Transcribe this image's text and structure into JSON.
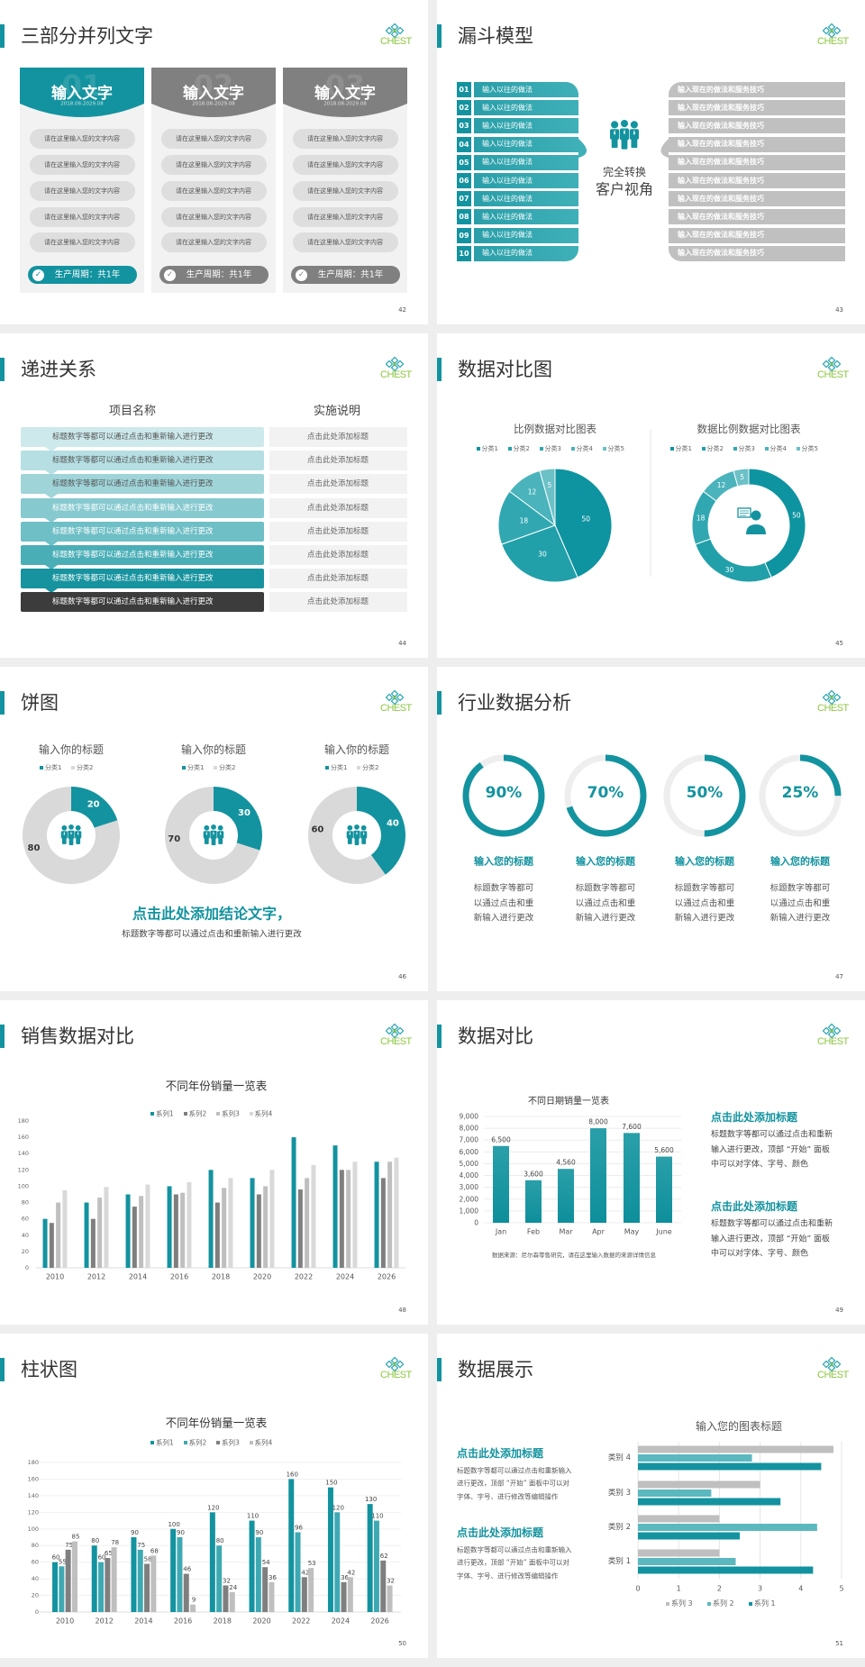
{
  "logo_text": "CHEST",
  "colors": {
    "accent": "#13939f",
    "teal_light": "#5bb8bf",
    "gray": "#808080",
    "gray_light": "#bfbfbf",
    "logo_green": "#8cc63f",
    "progress_rows": [
      "#cde9ec",
      "#b5dfe3",
      "#9fd4d9",
      "#86c9cf",
      "#6fbfc6",
      "#4aaeb7",
      "#16939e",
      "#3c3c3c"
    ],
    "pie_slices": [
      "#0e94a0",
      "#21a0aa",
      "#31a8b1",
      "#4ab3bb",
      "#6cc1c7"
    ]
  },
  "slides": [
    {
      "page": "42",
      "title": "三部分并列文字",
      "cards": [
        {
          "number": "01",
          "heading": "输入文字",
          "date": "2018.08-2029.08",
          "theme": "teal",
          "items": [
            "请在这里输入您的文字内容",
            "请在这里输入您的文字内容",
            "请在这里输入您的文字内容",
            "请在这里输入您的文字内容",
            "请在这里输入您的文字内容"
          ],
          "footer": "生产周期：共1年"
        },
        {
          "number": "02",
          "heading": "输入文字",
          "date": "2018.08-2029.08",
          "theme": "gray",
          "items": [
            "请在这里输入您的文字内容",
            "请在这里输入您的文字内容",
            "请在这里输入您的文字内容",
            "请在这里输入您的文字内容",
            "请在这里输入您的文字内容"
          ],
          "footer": "生产周期：共1年"
        },
        {
          "number": "03",
          "heading": "输入文字",
          "date": "2018.08-2029.08",
          "theme": "gray",
          "items": [
            "请在这里输入您的文字内容",
            "请在这里输入您的文字内容",
            "请在这里输入您的文字内容",
            "请在这里输入您的文字内容",
            "请在这里输入您的文字内容"
          ],
          "footer": "生产周期：共1年"
        }
      ]
    },
    {
      "page": "43",
      "title": "漏斗模型",
      "left_items": [
        {
          "num": "01",
          "text": "输入以往的做法"
        },
        {
          "num": "02",
          "text": "输入以往的做法"
        },
        {
          "num": "03",
          "text": "输入以往的做法"
        },
        {
          "num": "04",
          "text": "输入以往的做法"
        },
        {
          "num": "05",
          "text": "输入以往的做法"
        },
        {
          "num": "06",
          "text": "输入以往的做法"
        },
        {
          "num": "07",
          "text": "输入以往的做法"
        },
        {
          "num": "08",
          "text": "输入以往的做法"
        },
        {
          "num": "09",
          "text": "输入以往的做法"
        },
        {
          "num": "10",
          "text": "输入以往的做法"
        }
      ],
      "right_items": [
        "输入现在的做法和服务技巧",
        "输入现在的做法和服务技巧",
        "输入现在的做法和服务技巧",
        "输入现在的做法和服务技巧",
        "输入现在的做法和服务技巧",
        "输入现在的做法和服务技巧",
        "输入现在的做法和服务技巧",
        "输入现在的做法和服务技巧",
        "输入现在的做法和服务技巧",
        "输入现在的做法和服务技巧"
      ],
      "center_line1": "完全转换",
      "center_line2": "客户视角",
      "center_icon": "people-group-icon"
    },
    {
      "page": "44",
      "title": "递进关系",
      "col1_header": "项目名称",
      "col2_header": "实施说明",
      "rows": [
        {
          "name": "标题数字等都可以通过点击和重新输入进行更改",
          "desc": "点击此处添加标题"
        },
        {
          "name": "标题数字等都可以通过点击和重新输入进行更改",
          "desc": "点击此处添加标题"
        },
        {
          "name": "标题数字等都可以通过点击和重新输入进行更改",
          "desc": "点击此处添加标题"
        },
        {
          "name": "标题数字等都可以通过点击和重新输入进行更改",
          "desc": "点击此处添加标题"
        },
        {
          "name": "标题数字等都可以通过点击和重新输入进行更改",
          "desc": "点击此处添加标题"
        },
        {
          "name": "标题数字等都可以通过点击和重新输入进行更改",
          "desc": "点击此处添加标题"
        },
        {
          "name": "标题数字等都可以通过点击和重新输入进行更改",
          "desc": "点击此处添加标题"
        },
        {
          "name": "标题数字等都可以通过点击和重新输入进行更改",
          "desc": "点击此处添加标题"
        }
      ]
    },
    {
      "page": "45",
      "title": "数据对比图",
      "center_icon": "customer-service-icon"
    },
    {
      "page": "46",
      "title": "饼图",
      "center_icon": "people-group-icon",
      "conclusion": "点击此处添加结论文字，",
      "conclusion_sub": "标题数字等都可以通过点击和重新输入进行更改"
    },
    {
      "page": "47",
      "title": "行业数据分析",
      "items": [
        {
          "percent": 90,
          "label": "90%",
          "heading": "输入您的标题",
          "lines": [
            "标题数字等都可",
            "以通过点击和重",
            "新输入进行更改"
          ]
        },
        {
          "percent": 70,
          "label": "70%",
          "heading": "输入您的标题",
          "lines": [
            "标题数字等都可",
            "以通过点击和重",
            "新输入进行更改"
          ]
        },
        {
          "percent": 50,
          "label": "50%",
          "heading": "输入您的标题",
          "lines": [
            "标题数字等都可",
            "以通过点击和重",
            "新输入进行更改"
          ]
        },
        {
          "percent": 25,
          "label": "25%",
          "heading": "输入您的标题",
          "lines": [
            "标题数字等都可",
            "以通过点击和重",
            "新输入进行更改"
          ]
        }
      ]
    },
    {
      "page": "48",
      "title": "销售数据对比"
    },
    {
      "page": "49",
      "title": "数据对比",
      "source_note": "数据来源：尼尔森零售研究，请在这里输入数据的来源详情信息",
      "blocks": [
        {
          "heading": "点击此处添加标题",
          "lines": [
            "标题数字等都可以通过点击和重新",
            "输入进行更改，顶部 “开始” 面板",
            "中可以对字体、字号、颜色"
          ]
        },
        {
          "heading": "点击此处添加标题",
          "lines": [
            "标题数字等都可以通过点击和重新",
            "输入进行更改，顶部 “开始” 面板",
            "中可以对字体、字号、颜色"
          ]
        }
      ]
    },
    {
      "page": "50",
      "title": "柱状图"
    },
    {
      "page": "51",
      "title": "数据展示",
      "blocks": [
        {
          "heading": "点击此处添加标题",
          "lines": [
            "标题数字等都可以通过点击和重新输入",
            "进行更改，顶部 “开始” 面板中可以对",
            "字体、字号、进行修改等编辑操作"
          ]
        },
        {
          "heading": "点击此处添加标题",
          "lines": [
            "标题数字等都可以通过点击和重新输入",
            "进行更改，顶部 “开始” 面板中可以对",
            "字体、字号、进行修改等编辑操作"
          ]
        }
      ]
    }
  ],
  "chart_data": [
    {
      "slide": "45",
      "type": "pie",
      "title": "比例数据对比图表",
      "categories": [
        "分类1",
        "分类2",
        "分类3",
        "分类4",
        "分类5"
      ],
      "values": [
        50,
        30,
        18,
        12,
        5
      ],
      "legend": "top"
    },
    {
      "slide": "45",
      "type": "pie",
      "variant": "donut",
      "title": "数据比例数据对比图表",
      "categories": [
        "分类1",
        "分类2",
        "分类3",
        "分类4",
        "分类5"
      ],
      "values": [
        50,
        30,
        18,
        12,
        5
      ],
      "legend": "top"
    },
    {
      "slide": "46",
      "type": "pie",
      "variant": "donut",
      "title": "输入你的标题",
      "categories": [
        "分类1",
        "分类2"
      ],
      "values": [
        20,
        80
      ],
      "legend": "top"
    },
    {
      "slide": "46",
      "type": "pie",
      "variant": "donut",
      "title": "输入你的标题",
      "categories": [
        "分类1",
        "分类2"
      ],
      "values": [
        30,
        70
      ],
      "legend": "top"
    },
    {
      "slide": "46",
      "type": "pie",
      "variant": "donut",
      "title": "输入你的标题",
      "categories": [
        "分类1",
        "分类2"
      ],
      "values": [
        40,
        60
      ],
      "legend": "top"
    },
    {
      "slide": "48",
      "type": "bar",
      "title": "不同年份销量一览表",
      "categories": [
        "2010",
        "2012",
        "2014",
        "2016",
        "2018",
        "2020",
        "2022",
        "2024",
        "2026"
      ],
      "series": [
        {
          "name": "系列1",
          "color": "#13939f",
          "values": [
            60,
            80,
            90,
            100,
            120,
            110,
            160,
            150,
            130
          ]
        },
        {
          "name": "系列2",
          "color": "#7f7f7f",
          "values": [
            55,
            60,
            75,
            90,
            80,
            90,
            96,
            120,
            110
          ]
        },
        {
          "name": "系列3",
          "color": "#bfbfbf",
          "values": [
            80,
            86,
            88,
            92,
            98,
            100,
            110,
            120,
            130
          ]
        },
        {
          "name": "系列4",
          "color": "#d9d9d9",
          "values": [
            95,
            99,
            102,
            105,
            110,
            120,
            126,
            130,
            135
          ]
        }
      ],
      "ylim": [
        0,
        180
      ],
      "yticks": [
        0,
        20,
        40,
        60,
        80,
        100,
        120,
        140,
        160,
        180
      ],
      "legend": "top",
      "grid": false
    },
    {
      "slide": "49",
      "type": "bar",
      "title": "不同日期销量一览表",
      "categories": [
        "Jan",
        "Feb",
        "Mar",
        "Apr",
        "May",
        "June"
      ],
      "values": [
        6500,
        3600,
        4560,
        8000,
        7600,
        5600
      ],
      "value_labels": [
        "6,500",
        "3,600",
        "4,560",
        "8,000",
        "7,600",
        "5,600"
      ],
      "ylim": [
        0,
        9000
      ],
      "yticks": [
        "0",
        "1,000",
        "2,000",
        "3,000",
        "4,000",
        "5,000",
        "6,000",
        "7,000",
        "8,000",
        "9,000"
      ],
      "grid": true
    },
    {
      "slide": "50",
      "type": "bar",
      "title": "不同年份销量一览表",
      "categories": [
        "2010",
        "2012",
        "2014",
        "2016",
        "2018",
        "2020",
        "2022",
        "2024",
        "2026"
      ],
      "series": [
        {
          "name": "系列1",
          "color": "#13939f",
          "values": [
            60,
            80,
            90,
            100,
            120,
            110,
            160,
            150,
            130
          ]
        },
        {
          "name": "系列2",
          "color": "#3fa9b3",
          "values": [
            55,
            60,
            75,
            90,
            80,
            90,
            96,
            120,
            110
          ]
        },
        {
          "name": "系列3",
          "color": "#7f7f7f",
          "values": [
            75,
            65,
            58,
            46,
            32,
            54,
            42,
            36,
            62
          ]
        },
        {
          "name": "系列4",
          "color": "#bfbfbf",
          "values": [
            85,
            78,
            68,
            9,
            24,
            36,
            53,
            42,
            32
          ]
        }
      ],
      "ylim": [
        0,
        180
      ],
      "yticks": [
        0,
        20,
        40,
        60,
        80,
        100,
        120,
        140,
        160,
        180
      ],
      "legend": "top",
      "grid": true,
      "data_labels": true
    },
    {
      "slide": "51",
      "type": "bar",
      "orientation": "horizontal",
      "title": "输入您的图表标题",
      "categories": [
        "类别 1",
        "类别 2",
        "类别 3",
        "类别 4"
      ],
      "series": [
        {
          "name": "系列 1",
          "color": "#13939f",
          "values": [
            4.3,
            2.5,
            3.5,
            4.5
          ]
        },
        {
          "name": "系列 2",
          "color": "#5bb8bf",
          "values": [
            2.4,
            4.4,
            1.8,
            2.8
          ]
        },
        {
          "name": "系列 3",
          "color": "#bfbfbf",
          "values": [
            2,
            2,
            3,
            4.8
          ]
        }
      ],
      "xlim": [
        0,
        5
      ],
      "xticks": [
        0,
        1,
        2,
        3,
        4,
        5
      ],
      "legend": "bottom",
      "grid": true
    }
  ]
}
